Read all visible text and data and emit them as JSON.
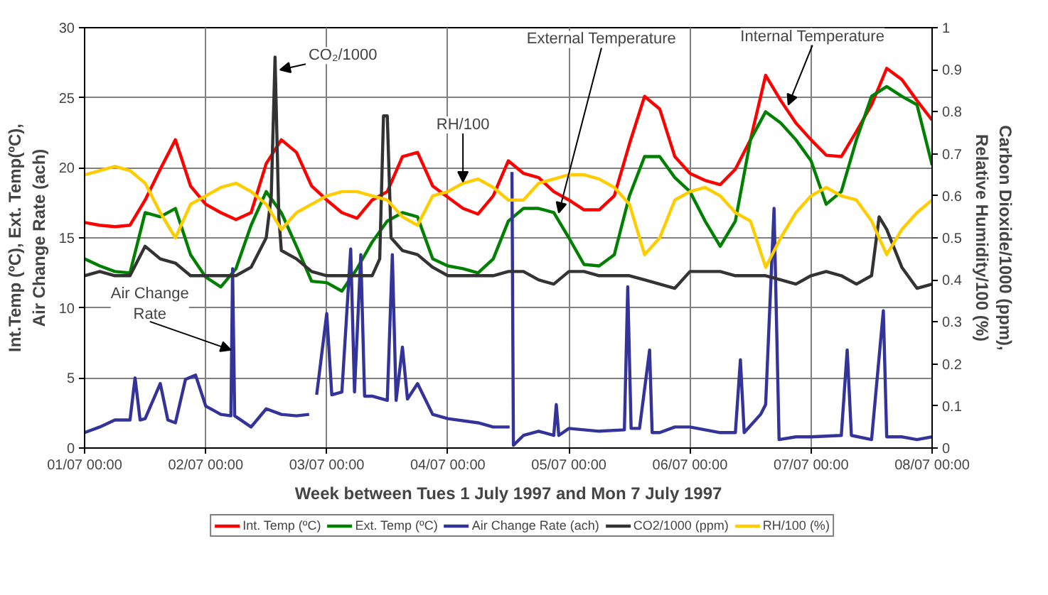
{
  "chart_data": {
    "type": "line",
    "xlabel": "Week between Tues 1 July 1997 and Mon 7 July 1997",
    "ylabel": "Int.Temp (ºC), Ext. Temp(ºC),\nAir Change Rate (ach)",
    "y2label": "Carbon Dioxide/1000 (ppm),\nRelative Humidity/100 (%)",
    "xlim": [
      "1997-07-01T00:00",
      "1997-07-08T00:00"
    ],
    "xticks": [
      {
        "value": "1997-07-01T00:00",
        "label": "01/07 00:00"
      },
      {
        "value": "1997-07-02T00:00",
        "label": "02/07 00:00"
      },
      {
        "value": "1997-07-03T00:00",
        "label": "03/07 00:00"
      },
      {
        "value": "1997-07-04T00:00",
        "label": "04/07 00:00"
      },
      {
        "value": "1997-07-05T00:00",
        "label": "05/07 00:00"
      },
      {
        "value": "1997-07-06T00:00",
        "label": "06/07 00:00"
      },
      {
        "value": "1997-07-07T00:00",
        "label": "07/07 00:00"
      },
      {
        "value": "1997-07-08T00:00",
        "label": "08/07 00:00"
      }
    ],
    "ylim": [
      0,
      30
    ],
    "yticks": [
      0,
      5,
      10,
      15,
      20,
      25,
      30
    ],
    "y2lim": [
      0,
      1
    ],
    "y2ticks": [
      0,
      0.1,
      0.2,
      0.3,
      0.4,
      0.5,
      0.6,
      0.7,
      0.8,
      0.9,
      1
    ],
    "grid": true,
    "legend": "bottom",
    "marker": "none",
    "line_style": "solid",
    "x": [
      "1997-07-01T00:00",
      "1997-07-01T03:00",
      "1997-07-01T06:00",
      "1997-07-01T09:00",
      "1997-07-01T12:00",
      "1997-07-01T15:00",
      "1997-07-01T18:00",
      "1997-07-01T21:00",
      "1997-07-02T00:00",
      "1997-07-02T03:00",
      "1997-07-02T06:00",
      "1997-07-02T09:00",
      "1997-07-02T12:00",
      "1997-07-02T15:00",
      "1997-07-02T18:00",
      "1997-07-02T21:00",
      "1997-07-03T00:00",
      "1997-07-03T03:00",
      "1997-07-03T06:00",
      "1997-07-03T09:00",
      "1997-07-03T12:00",
      "1997-07-03T15:00",
      "1997-07-03T18:00",
      "1997-07-03T21:00",
      "1997-07-04T00:00",
      "1997-07-04T03:00",
      "1997-07-04T06:00",
      "1997-07-04T09:00",
      "1997-07-04T12:00",
      "1997-07-04T15:00",
      "1997-07-04T18:00",
      "1997-07-04T21:00",
      "1997-07-05T00:00",
      "1997-07-05T03:00",
      "1997-07-05T06:00",
      "1997-07-05T09:00",
      "1997-07-05T12:00",
      "1997-07-05T15:00",
      "1997-07-05T18:00",
      "1997-07-05T21:00",
      "1997-07-06T00:00",
      "1997-07-06T03:00",
      "1997-07-06T06:00",
      "1997-07-06T09:00",
      "1997-07-06T12:00",
      "1997-07-06T15:00",
      "1997-07-06T18:00",
      "1997-07-06T21:00",
      "1997-07-07T00:00",
      "1997-07-07T03:00",
      "1997-07-07T06:00",
      "1997-07-07T09:00",
      "1997-07-07T12:00",
      "1997-07-07T15:00",
      "1997-07-07T18:00",
      "1997-07-07T21:00",
      "1997-07-08T00:00"
    ],
    "series": [
      {
        "name": "Int. Temp (ºC)",
        "color": "#ff0000",
        "values": [
          16.1,
          15.9,
          15.8,
          15.9,
          17.7,
          19.9,
          22.0,
          18.7,
          17.4,
          16.8,
          16.3,
          16.8,
          20.3,
          22.0,
          21.1,
          18.7,
          17.7,
          16.8,
          16.4,
          17.7,
          18.3,
          20.8,
          21.1,
          18.7,
          17.9,
          17.1,
          16.7,
          18.0,
          20.5,
          19.6,
          19.3,
          18.3,
          17.7,
          17.0,
          17.0,
          18.0,
          21.7,
          25.1,
          24.2,
          20.8,
          19.6,
          19.1,
          18.8,
          19.9,
          22.0,
          26.6,
          24.8,
          23.2,
          22.0,
          20.9,
          20.8,
          22.6,
          24.5,
          27.1,
          26.3,
          24.8,
          23.4
        ]
      },
      {
        "name": "Ext. Temp (ºC)",
        "color": "#008000",
        "values": [
          13.5,
          13.0,
          12.6,
          12.5,
          16.8,
          16.5,
          17.1,
          13.8,
          12.2,
          11.5,
          12.8,
          15.9,
          18.3,
          16.8,
          14.4,
          11.9,
          11.8,
          11.2,
          12.8,
          14.7,
          16.2,
          16.8,
          16.5,
          13.5,
          13.0,
          12.8,
          12.5,
          13.5,
          16.2,
          17.1,
          17.1,
          16.8,
          15.0,
          13.1,
          13.0,
          13.8,
          18.0,
          20.8,
          20.8,
          19.3,
          18.3,
          16.2,
          14.4,
          16.2,
          22.0,
          24.0,
          23.2,
          22.0,
          20.5,
          17.4,
          18.3,
          22.0,
          25.1,
          25.8,
          25.1,
          24.5,
          20.2
        ]
      },
      {
        "name": "Air Change Rate (ach)",
        "color": "#333399",
        "x": [
          "1997-07-01T00:00",
          "1997-07-01T03:00",
          "1997-07-01T06:00",
          "1997-07-01T09:00",
          "1997-07-01T10:00",
          "1997-07-01T11:00",
          "1997-07-01T12:00",
          "1997-07-01T15:00",
          "1997-07-01T16:30",
          "1997-07-01T18:00",
          "1997-07-01T20:00",
          "1997-07-01T22:00",
          "1997-07-02T00:00",
          "1997-07-02T03:00",
          "1997-07-02T05:00",
          "1997-07-02T05:20",
          "1997-07-02T05:45",
          "1997-07-02T09:00",
          "1997-07-02T12:00",
          "1997-07-02T15:00",
          "1997-07-02T18:00",
          "1997-07-02T20:30",
          "1997-07-02T21:30",
          "1997-07-02T22:00",
          "1997-07-03T00:00",
          "1997-07-03T01:00",
          "1997-07-03T03:00",
          "1997-07-03T04:45",
          "1997-07-03T05:30",
          "1997-07-03T06:45",
          "1997-07-03T07:30",
          "1997-07-03T09:00",
          "1997-07-03T12:00",
          "1997-07-03T13:00",
          "1997-07-03T13:45",
          "1997-07-03T15:00",
          "1997-07-03T16:00",
          "1997-07-03T18:00",
          "1997-07-03T21:00",
          "1997-07-04T00:00",
          "1997-07-04T06:00",
          "1997-07-04T09:00",
          "1997-07-04T12:15",
          "1997-07-04T12:30",
          "1997-07-04T12:43",
          "1997-07-04T13:00",
          "1997-07-04T15:00",
          "1997-07-04T18:00",
          "1997-07-04T21:00",
          "1997-07-04T21:30",
          "1997-07-04T22:00",
          "1997-07-05T00:00",
          "1997-07-05T06:00",
          "1997-07-05T11:00",
          "1997-07-05T11:40",
          "1997-07-05T12:20",
          "1997-07-05T14:00",
          "1997-07-05T16:00",
          "1997-07-05T16:30",
          "1997-07-05T18:00",
          "1997-07-05T21:00",
          "1997-07-06T00:00",
          "1997-07-06T06:00",
          "1997-07-06T09:00",
          "1997-07-06T10:00",
          "1997-07-06T10:45",
          "1997-07-06T14:00",
          "1997-07-06T15:00",
          "1997-07-06T16:40",
          "1997-07-06T17:40",
          "1997-07-06T21:00",
          "1997-07-07T00:00",
          "1997-07-07T06:00",
          "1997-07-07T07:10",
          "1997-07-07T08:00",
          "1997-07-07T12:00",
          "1997-07-07T14:20",
          "1997-07-07T15:00",
          "1997-07-07T18:00",
          "1997-07-07T21:00",
          "1997-07-08T00:00"
        ],
        "values": [
          1.1,
          1.5,
          2.0,
          2.0,
          5.0,
          2.0,
          2.1,
          4.6,
          2.0,
          1.8,
          4.9,
          5.2,
          3.0,
          2.4,
          2.3,
          12.8,
          2.3,
          1.5,
          2.8,
          2.4,
          2.3,
          2.4,
          null,
          3.8,
          9.6,
          3.8,
          4.0,
          14.2,
          4.0,
          13.8,
          3.7,
          3.7,
          3.4,
          13.8,
          3.4,
          7.2,
          3.5,
          4.6,
          2.4,
          2.1,
          1.8,
          1.5,
          1.5,
          null,
          19.7,
          0.2,
          0.9,
          1.2,
          0.9,
          3.1,
          0.9,
          1.4,
          1.2,
          1.3,
          11.5,
          1.4,
          1.4,
          7.0,
          1.1,
          1.1,
          1.5,
          1.5,
          1.1,
          1.1,
          6.3,
          1.1,
          2.4,
          3.1,
          17.1,
          0.6,
          0.8,
          0.8,
          0.9,
          7.0,
          0.9,
          0.6,
          9.8,
          0.8,
          0.8,
          0.6,
          0.8
        ]
      },
      {
        "name": "CO2/1000 (ppm)",
        "color": "#333333",
        "axis": "y2",
        "x": [
          "1997-07-01T00:00",
          "1997-07-01T03:00",
          "1997-07-01T06:00",
          "1997-07-01T09:00",
          "1997-07-01T12:00",
          "1997-07-01T15:00",
          "1997-07-01T18:00",
          "1997-07-01T21:00",
          "1997-07-02T00:00",
          "1997-07-02T03:00",
          "1997-07-02T06:00",
          "1997-07-02T09:00",
          "1997-07-02T12:00",
          "1997-07-02T13:00",
          "1997-07-02T13:45",
          "1997-07-02T14:30",
          "1997-07-02T15:00",
          "1997-07-02T18:00",
          "1997-07-02T21:00",
          "1997-07-03T00:00",
          "1997-07-03T03:00",
          "1997-07-03T06:00",
          "1997-07-03T09:00",
          "1997-07-03T10:30",
          "1997-07-03T11:15",
          "1997-07-03T12:00",
          "1997-07-03T12:45",
          "1997-07-03T15:00",
          "1997-07-03T18:00",
          "1997-07-03T21:00",
          "1997-07-04T00:00",
          "1997-07-04T03:00",
          "1997-07-04T06:00",
          "1997-07-04T09:00",
          "1997-07-04T12:00",
          "1997-07-04T15:00",
          "1997-07-04T18:00",
          "1997-07-04T21:00",
          "1997-07-05T00:00",
          "1997-07-05T03:00",
          "1997-07-05T06:00",
          "1997-07-05T09:00",
          "1997-07-05T12:00",
          "1997-07-05T15:00",
          "1997-07-05T18:00",
          "1997-07-05T21:00",
          "1997-07-06T00:00",
          "1997-07-06T03:00",
          "1997-07-06T06:00",
          "1997-07-06T09:00",
          "1997-07-06T12:00",
          "1997-07-06T15:00",
          "1997-07-06T18:00",
          "1997-07-06T21:00",
          "1997-07-07T00:00",
          "1997-07-07T03:00",
          "1997-07-07T06:00",
          "1997-07-07T09:00",
          "1997-07-07T12:00",
          "1997-07-07T13:30",
          "1997-07-07T15:00",
          "1997-07-07T18:00",
          "1997-07-07T21:00",
          "1997-07-08T00:00"
        ],
        "values": [
          0.41,
          0.42,
          0.41,
          0.41,
          0.48,
          0.45,
          0.44,
          0.41,
          0.41,
          0.41,
          0.41,
          0.43,
          0.5,
          0.6,
          0.93,
          0.55,
          0.47,
          0.45,
          0.42,
          0.41,
          0.41,
          0.41,
          0.41,
          0.45,
          0.79,
          0.79,
          0.5,
          0.47,
          0.46,
          0.43,
          0.41,
          0.41,
          0.41,
          0.41,
          0.42,
          0.42,
          0.4,
          0.39,
          0.42,
          0.42,
          0.41,
          0.41,
          0.41,
          0.4,
          0.39,
          0.38,
          0.42,
          0.42,
          0.42,
          0.41,
          0.41,
          0.41,
          0.4,
          0.39,
          0.41,
          0.42,
          0.41,
          0.39,
          0.41,
          0.55,
          0.52,
          0.43,
          0.38,
          0.39
        ]
      },
      {
        "name": "RH/100 (%)",
        "color": "#ffcc00",
        "axis": "y2",
        "values": [
          0.65,
          0.66,
          0.67,
          0.66,
          0.63,
          0.56,
          0.5,
          0.58,
          0.6,
          0.62,
          0.63,
          0.61,
          0.58,
          0.52,
          0.56,
          0.58,
          0.6,
          0.61,
          0.61,
          0.6,
          0.59,
          0.55,
          0.53,
          0.6,
          0.61,
          0.63,
          0.64,
          0.62,
          0.59,
          0.59,
          0.63,
          0.64,
          0.65,
          0.65,
          0.64,
          0.62,
          0.58,
          0.46,
          0.5,
          0.59,
          0.61,
          0.62,
          0.6,
          0.56,
          0.54,
          0.43,
          0.5,
          0.56,
          0.6,
          0.62,
          0.6,
          0.59,
          0.54,
          0.46,
          0.52,
          0.56,
          0.59
        ]
      }
    ],
    "annotations": [
      {
        "text": "CO₂/1000",
        "x": "1997-07-02T14:45",
        "y": 27.0
      },
      {
        "text": "RH/100",
        "x": "1997-07-04T03:00",
        "y": 19.0
      },
      {
        "text": "Air Change\nRate",
        "x": "1997-07-02T05:00",
        "y": 7.0
      },
      {
        "text": "External Temperature",
        "x": "1997-07-04T22:00",
        "y": 16.8
      },
      {
        "text": "Internal Temperature",
        "x": "1997-07-06T19:30",
        "y": 24.5
      }
    ]
  }
}
